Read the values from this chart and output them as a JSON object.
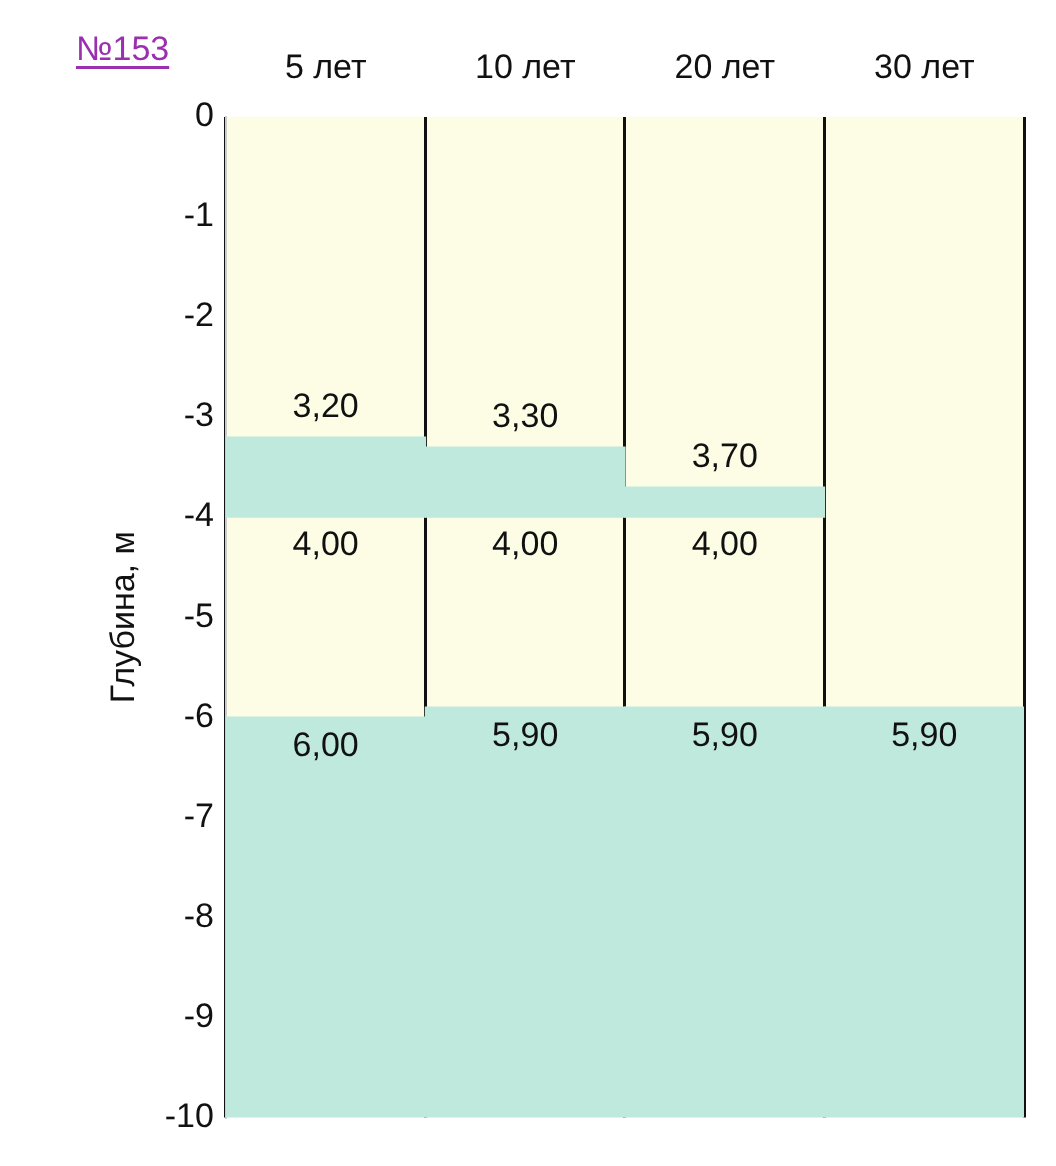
{
  "chart_data": {
    "type": "bar",
    "title": "№153",
    "ylabel": "Глубина, м",
    "categories": [
      "5 лет",
      "10 лет",
      "20 лет",
      "30 лет"
    ],
    "series": [
      {
        "color": "#bfe9dc",
        "base": [
          -3.2,
          -3.3,
          -3.7,
          null
        ],
        "values": [
          -0.8,
          -0.7,
          -0.3,
          null
        ]
      },
      {
        "color": "#bfe9dc",
        "base": [
          -10,
          -10,
          -10,
          -10
        ],
        "values": [
          4.0,
          4.1,
          4.1,
          4.1
        ]
      }
    ],
    "ylim": [
      -10,
      0
    ],
    "yticks": [
      0,
      -1,
      -2,
      -3,
      -4,
      -5,
      -6,
      -7,
      -8,
      -9,
      -10
    ],
    "grid": "x",
    "legend": false,
    "annotations": [
      {
        "text": "3,20",
        "x": "5 лет",
        "y": -3.2
      },
      {
        "text": "4,00",
        "x": "5 лет",
        "y": -4.0
      },
      {
        "text": "6,00",
        "x": "5 лет",
        "y": -6.0
      },
      {
        "text": "3,30",
        "x": "10 лет",
        "y": -3.3
      },
      {
        "text": "4,00",
        "x": "10 лет",
        "y": -4.0
      },
      {
        "text": "5,90",
        "x": "10 лет",
        "y": -5.9
      },
      {
        "text": "3,70",
        "x": "20 лет",
        "y": -3.7
      },
      {
        "text": "4,00",
        "x": "20 лет",
        "y": -4.0
      },
      {
        "text": "5,90",
        "x": "20 лет",
        "y": -5.9
      },
      {
        "text": "5,90",
        "x": "30 лет",
        "y": -5.9
      }
    ]
  }
}
